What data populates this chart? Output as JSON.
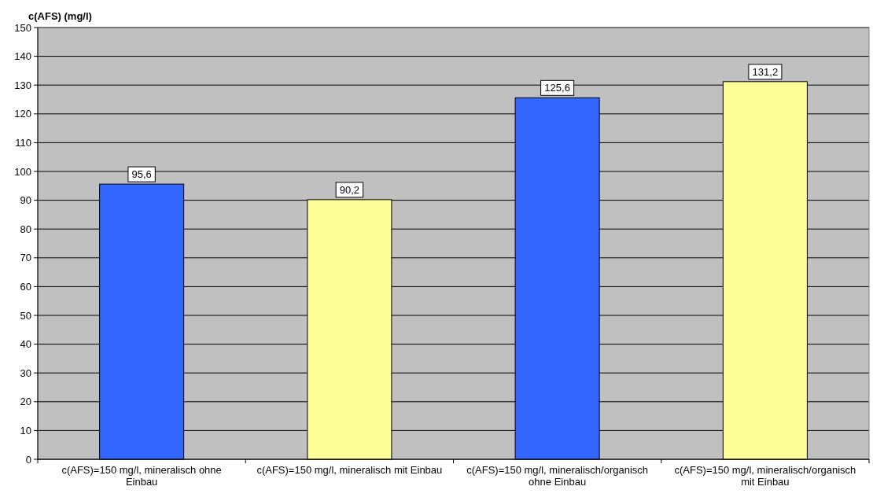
{
  "chart_data": {
    "type": "bar",
    "ylabel": "c(AFS) (mg/l)",
    "categories": [
      "c(AFS)=150 mg/l, mineralisch ohne Einbau",
      "c(AFS)=150 mg/l, mineralisch mit Einbau",
      "c(AFS)=150 mg/l, mineralisch/organisch ohne Einbau",
      "c(AFS)=150 mg/l, mineralisch/organisch mit Einbau"
    ],
    "values": [
      95.6,
      90.2,
      125.6,
      131.2
    ],
    "colors": [
      "#3366ff",
      "#ffff99",
      "#3366ff",
      "#ffff99"
    ],
    "value_labels": [
      "95,6",
      "90,2",
      "125,6",
      "131,2"
    ],
    "ylim": [
      0,
      150
    ],
    "yticks": [
      0,
      10,
      20,
      30,
      40,
      50,
      60,
      70,
      80,
      90,
      100,
      110,
      120,
      130,
      140,
      150
    ],
    "grid": "y"
  }
}
